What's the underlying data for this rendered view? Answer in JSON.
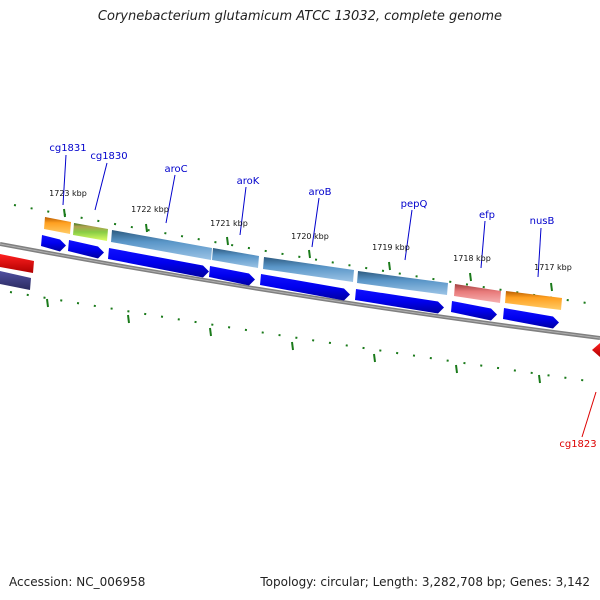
{
  "title": "Corynebacterium glutamicum ATCC 13032, complete genome",
  "footer": {
    "accession": "Accession: NC_006958",
    "summary": "Topology: circular; Length: 3,282,708 bp; Genes: 3,142"
  },
  "colors": {
    "backbone": "#808080",
    "tick": "#1a7a1a",
    "cds": "#0000ee",
    "label": "#0000cc",
    "highlight": "#dd0000"
  },
  "ticks": [
    {
      "label": "1723 kbp"
    },
    {
      "label": "1722 kbp"
    },
    {
      "label": "1721 kbp"
    },
    {
      "label": "1720 kbp"
    },
    {
      "label": "1719 kbp"
    },
    {
      "label": "1718 kbp"
    },
    {
      "label": "1717 kbp"
    }
  ],
  "genes": [
    {
      "label": "cg1831",
      "color": "#0000cc"
    },
    {
      "label": "cg1830",
      "color": "#0000cc"
    },
    {
      "label": "aroC",
      "color": "#0000cc"
    },
    {
      "label": "aroK",
      "color": "#0000cc"
    },
    {
      "label": "aroB",
      "color": "#0000cc"
    },
    {
      "label": "pepQ",
      "color": "#0000cc"
    },
    {
      "label": "efp",
      "color": "#0000cc"
    },
    {
      "label": "nusB",
      "color": "#0000cc"
    },
    {
      "label": "cg1823",
      "color": "#dd0000"
    }
  ],
  "feature_colors": [
    "#ff8800",
    "#88cc44",
    "#4682b4",
    "#4682b4",
    "#4682b4",
    "#4682b4",
    "#e87a7a",
    "#ff8800"
  ]
}
